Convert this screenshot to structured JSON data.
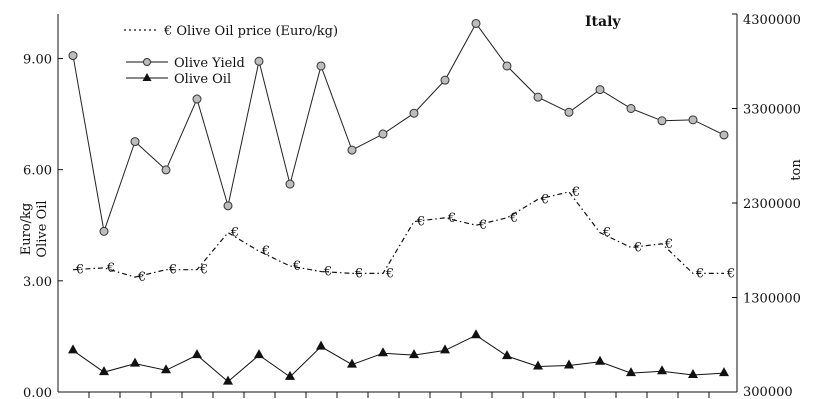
{
  "chart_data": {
    "type": "line",
    "title": "Italy",
    "ylabel_left": "Euro/kg",
    "ylabel_left2": "Olive Oil",
    "ylabel_right": "ton",
    "ylim_left": [
      0,
      10.2
    ],
    "ylim_right": [
      300000,
      4300000
    ],
    "yticks_left": [
      "0.00",
      "3.00",
      "6.00",
      "9.00"
    ],
    "yticks_right": [
      "300000",
      "1300000",
      "2300000",
      "3300000",
      "4300000"
    ],
    "legend_placement": "top-left",
    "price_marker": "€",
    "n_points": 22,
    "series": [
      {
        "name": "Olive Oil price (Euro/kg)",
        "legend_label": "€  Olive Oil price (Euro/kg)",
        "axis": "left",
        "style": "dash-dot",
        "marker": "euro",
        "values": [
          3.3,
          3.35,
          3.1,
          3.3,
          3.3,
          4.3,
          3.8,
          3.4,
          3.25,
          3.2,
          3.2,
          4.6,
          4.7,
          4.5,
          4.7,
          5.2,
          5.4,
          4.3,
          3.9,
          4.0,
          3.2,
          3.2
        ]
      },
      {
        "name": "Olive Yield",
        "legend_label": "Olive Yield",
        "axis": "right",
        "style": "solid",
        "marker": "circle",
        "values": [
          3860000,
          2000000,
          2950000,
          2650000,
          3400000,
          2270000,
          3800000,
          2500000,
          3750000,
          2860000,
          3030000,
          3250000,
          3600000,
          4200000,
          3750000,
          3420000,
          3260000,
          3500000,
          3300000,
          3170000,
          3180000,
          3020000
        ]
      },
      {
        "name": "Olive Oil",
        "legend_label": "Olive Oil",
        "axis": "right",
        "style": "solid",
        "marker": "triangle",
        "values": [
          740000,
          510000,
          600000,
          530000,
          690000,
          410000,
          690000,
          460000,
          780000,
          590000,
          710000,
          690000,
          740000,
          900000,
          680000,
          570000,
          580000,
          620000,
          500000,
          520000,
          480000,
          500000
        ]
      }
    ]
  }
}
